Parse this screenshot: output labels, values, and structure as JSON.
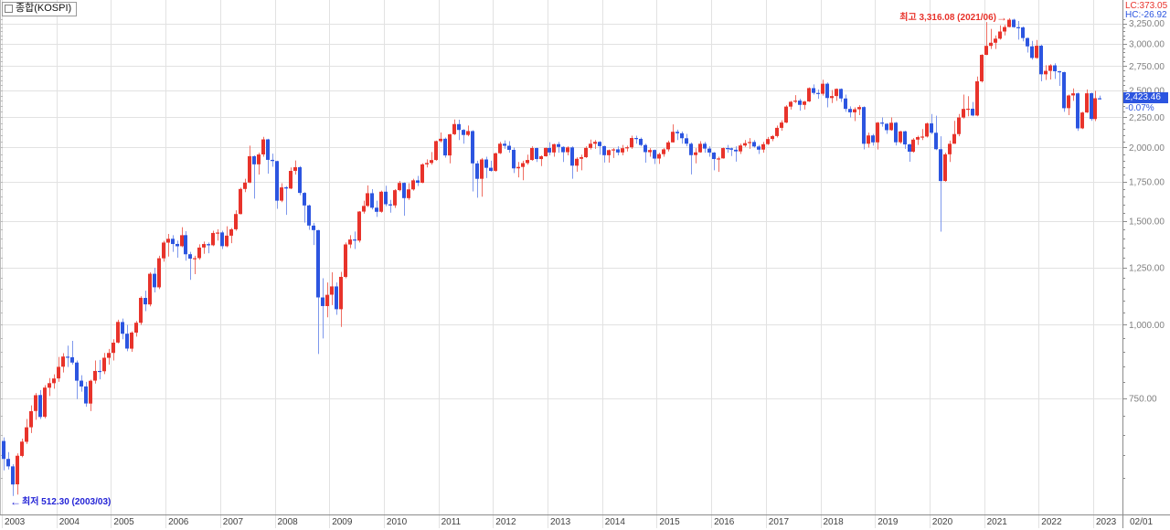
{
  "window": {
    "title": "종합(KOSPI)"
  },
  "header": {
    "lc": "LC:373.05",
    "hc": "HC:-26.92"
  },
  "price_marker": {
    "value": "2,423.46",
    "change": "-0.07%"
  },
  "annotations": {
    "high_label": "최고 3,316.08 (2021/06)",
    "high_arrow": "→",
    "low_label": "최저 512.30 (2003/03)",
    "low_arrow": "←"
  },
  "axes": {
    "x_labels": [
      "2003",
      "2004",
      "2005",
      "2006",
      "2007",
      "2008",
      "2009",
      "2010",
      "2011",
      "2012",
      "2013",
      "2014",
      "2015",
      "2016",
      "2017",
      "2018",
      "2019",
      "2020",
      "2021",
      "2022",
      "2023"
    ],
    "x_extra_label": "02/01",
    "y_tick_labels": [
      "3,250.00",
      "3,000.00",
      "2,750.00",
      "2,500.00",
      "2,250.00",
      "2,000.00",
      "1,750.00",
      "1,500.00",
      "1,250.00",
      "1,000.00",
      "750.00"
    ],
    "y_tick_values": [
      3250,
      3000,
      2750,
      2500,
      2250,
      2000,
      1750,
      1500,
      1250,
      1000,
      750
    ]
  },
  "colors": {
    "up": "#e8332b",
    "up_wick": "#ef6f63",
    "down": "#2c55e0",
    "down_wick": "#7e98ec",
    "grid": "#e2e2e2",
    "axis": "#8c8c8c",
    "y_label": "#7f7f7f",
    "x_label": "#404040",
    "annotation_red": "#e8332b",
    "annotation_blue": "#2424d6",
    "badge_bg": "#2c55e0",
    "badge_text": "#ffffff"
  },
  "chart_data": {
    "type": "candlestick",
    "title": "종합(KOSPI)",
    "timeframe": "monthly",
    "start_month": "2003-01",
    "end_month": "2023-02",
    "scale": "log",
    "ylim": [
      512.3,
      3316.08
    ],
    "y_ticks": [
      750,
      1000,
      1250,
      1500,
      1750,
      2000,
      2250,
      2500,
      2750,
      3000,
      3250
    ],
    "high": {
      "value": 3316.08,
      "month": "2021-06"
    },
    "low": {
      "value": 512.3,
      "month": "2003-03"
    },
    "last": {
      "close": 2423.46,
      "change_pct": -0.07
    },
    "ohlc": [
      [
        635,
        644,
        566,
        592
      ],
      [
        592,
        608,
        568,
        575
      ],
      [
        575,
        580,
        512.3,
        535.7
      ],
      [
        536,
        605,
        515,
        599.4
      ],
      [
        599,
        641,
        596,
        633.4
      ],
      [
        633,
        692,
        628,
        669.9
      ],
      [
        670,
        730,
        655,
        713.5
      ],
      [
        714,
        766,
        690,
        759.5
      ],
      [
        760,
        775,
        692,
        697.5
      ],
      [
        698,
        790,
        694,
        782.4
      ],
      [
        782,
        812,
        757,
        796.1
      ],
      [
        796,
        824,
        779,
        810.7
      ],
      [
        811,
        882,
        800,
        848.5
      ],
      [
        849,
        895,
        830,
        883.4
      ],
      [
        883,
        922,
        848,
        880.5
      ],
      [
        881,
        939.5,
        856,
        862.8
      ],
      [
        863,
        870,
        748,
        803.8
      ],
      [
        804,
        821,
        770,
        785.8
      ],
      [
        786,
        800,
        726,
        735.3
      ],
      [
        735,
        807,
        713.6,
        803.6
      ],
      [
        804,
        870,
        795,
        835
      ],
      [
        835,
        872,
        808,
        834.4
      ],
      [
        834,
        896,
        825,
        879.3
      ],
      [
        879,
        910,
        856,
        895.9
      ],
      [
        896,
        945,
        870,
        932.7
      ],
      [
        933,
        1020,
        930,
        1011.4
      ],
      [
        1011,
        1025,
        945,
        965.7
      ],
      [
        966,
        1000,
        902,
        911.3
      ],
      [
        911,
        975,
        900,
        970.2
      ],
      [
        970,
        1015,
        955,
        1008.2
      ],
      [
        1008,
        1118,
        1000,
        1111.3
      ],
      [
        1111,
        1143,
        1055,
        1083.3
      ],
      [
        1083,
        1228,
        1075,
        1221
      ],
      [
        1221,
        1250,
        1135,
        1158.1
      ],
      [
        1158,
        1310,
        1150,
        1297.4
      ],
      [
        1297,
        1389,
        1280,
        1379.4
      ],
      [
        1379,
        1427,
        1306,
        1399.8
      ],
      [
        1400,
        1420,
        1330,
        1371.6
      ],
      [
        1372,
        1390,
        1300,
        1359.6
      ],
      [
        1360,
        1464.7,
        1355,
        1419.7
      ],
      [
        1420,
        1442,
        1285,
        1317.7
      ],
      [
        1318,
        1330,
        1192.1,
        1295.2
      ],
      [
        1295,
        1310,
        1219,
        1297.8
      ],
      [
        1298,
        1370,
        1290,
        1352.7
      ],
      [
        1353,
        1385,
        1320,
        1371.4
      ],
      [
        1371,
        1380,
        1323,
        1364.6
      ],
      [
        1365,
        1445,
        1360,
        1432.2
      ],
      [
        1432,
        1453,
        1390,
        1434.5
      ],
      [
        1435,
        1445,
        1345,
        1360.2
      ],
      [
        1360,
        1470,
        1355,
        1417.3
      ],
      [
        1417,
        1460,
        1376,
        1452.6
      ],
      [
        1453,
        1565,
        1445,
        1542.2
      ],
      [
        1542,
        1710,
        1540,
        1700.9
      ],
      [
        1701,
        1770,
        1680,
        1743.6
      ],
      [
        1744,
        2015,
        1740,
        1933.3
      ],
      [
        1933,
        1940,
        1638.1,
        1873
      ],
      [
        1873,
        1960,
        1800,
        1946.5
      ],
      [
        1947,
        2085.5,
        1930,
        2064.9
      ],
      [
        2065,
        2070,
        1806,
        1906
      ],
      [
        1906,
        1953,
        1855,
        1897.1
      ],
      [
        1897,
        1900,
        1574,
        1624.7
      ],
      [
        1625,
        1740,
        1615,
        1711.6
      ],
      [
        1712,
        1720,
        1537,
        1704
      ],
      [
        1704,
        1850,
        1700,
        1825.5
      ],
      [
        1826,
        1901,
        1800,
        1852
      ],
      [
        1852,
        1860,
        1660,
        1674.9
      ],
      [
        1675,
        1680,
        1491,
        1594.7
      ],
      [
        1595,
        1600,
        1450,
        1474.2
      ],
      [
        1474,
        1490,
        1366,
        1448.1
      ],
      [
        1448,
        1450,
        892.2,
        1113.1
      ],
      [
        1113,
        1200,
        948,
        1076.1
      ],
      [
        1076,
        1180,
        1030,
        1124.5
      ],
      [
        1125,
        1228,
        1080,
        1162.1
      ],
      [
        1162,
        1180,
        1040,
        1063
      ],
      [
        1063,
        1230,
        992,
        1206.3
      ],
      [
        1206,
        1380,
        1200,
        1369.4
      ],
      [
        1369,
        1420,
        1350,
        1395.9
      ],
      [
        1396,
        1440,
        1345,
        1390.1
      ],
      [
        1390,
        1560,
        1380,
        1557.3
      ],
      [
        1557,
        1625,
        1545,
        1591.9
      ],
      [
        1592,
        1725,
        1585,
        1673.1
      ],
      [
        1673,
        1700,
        1570,
        1580.7
      ],
      [
        1581,
        1625,
        1525,
        1555.6
      ],
      [
        1556,
        1690,
        1550,
        1682.8
      ],
      [
        1683,
        1723,
        1590,
        1602.4
      ],
      [
        1602,
        1630,
        1550,
        1594.6
      ],
      [
        1595,
        1700,
        1580,
        1692.9
      ],
      [
        1693,
        1755,
        1685,
        1741.6
      ],
      [
        1742,
        1745,
        1532,
        1641.3
      ],
      [
        1641,
        1740,
        1630,
        1698.3
      ],
      [
        1698,
        1770,
        1690,
        1759.3
      ],
      [
        1759,
        1790,
        1720,
        1742.8
      ],
      [
        1743,
        1880,
        1740,
        1872.8
      ],
      [
        1873,
        1910,
        1850,
        1882.9
      ],
      [
        1883,
        1965,
        1870,
        1904.6
      ],
      [
        1905,
        2055,
        1900,
        2051
      ],
      [
        2051,
        2121,
        2040,
        2069.7
      ],
      [
        2070,
        2080,
        1923,
        1939.3
      ],
      [
        1939,
        2110,
        1880,
        2106.7
      ],
      [
        2107,
        2231.5,
        2100,
        2192.4
      ],
      [
        2192,
        2230,
        2060,
        2142.5
      ],
      [
        2143,
        2150,
        2030,
        2100.7
      ],
      [
        2101,
        2180,
        2090,
        2133.2
      ],
      [
        2133,
        2140,
        1684.7,
        1880.1
      ],
      [
        1880,
        1900,
        1644.1,
        1769.7
      ],
      [
        1770,
        1920,
        1650,
        1909
      ],
      [
        1909,
        1930,
        1775,
        1847.5
      ],
      [
        1848,
        1900,
        1820,
        1825.7
      ],
      [
        1826,
        1960,
        1820,
        1955.8
      ],
      [
        1956,
        2045,
        1950,
        2030.3
      ],
      [
        2030,
        2057,
        1990,
        2014
      ],
      [
        2014,
        2050,
        1960,
        1981.9
      ],
      [
        1982,
        2000,
        1810,
        1843.5
      ],
      [
        1844,
        1890,
        1780,
        1854
      ],
      [
        1854,
        1900,
        1760,
        1881.9
      ],
      [
        1882,
        1945,
        1870,
        1905.1
      ],
      [
        1905,
        2010,
        1900,
        1996.2
      ],
      [
        1996,
        2000,
        1890,
        1912.1
      ],
      [
        1912,
        1940,
        1860,
        1932.9
      ],
      [
        1933,
        2000,
        1930,
        1997.1
      ],
      [
        1997,
        2042,
        1940,
        1961.9
      ],
      [
        1962,
        2030,
        1930,
        2026.5
      ],
      [
        2027,
        2045,
        1960,
        2004.9
      ],
      [
        2005,
        2010,
        1890,
        1963.9
      ],
      [
        1964,
        2010,
        1940,
        2001.1
      ],
      [
        2001,
        2010,
        1770.5,
        1863.3
      ],
      [
        1863,
        1925,
        1820,
        1914
      ],
      [
        1914,
        1945,
        1830,
        1926.4
      ],
      [
        1926,
        2010,
        1920,
        1997
      ],
      [
        1997,
        2063,
        1985,
        2030.1
      ],
      [
        2030,
        2060,
        1990,
        2044.9
      ],
      [
        2045,
        2050,
        1945,
        2011.3
      ],
      [
        2011,
        2015,
        1886,
        1941.2
      ],
      [
        1941,
        1985,
        1885,
        1980
      ],
      [
        1980,
        1995,
        1920,
        1985.6
      ],
      [
        1986,
        2010,
        1940,
        1961.8
      ],
      [
        1962,
        2020,
        1940,
        1995
      ],
      [
        1995,
        2015,
        1970,
        2002.2
      ],
      [
        2002,
        2095,
        1990,
        2076.1
      ],
      [
        2076,
        2095,
        2030,
        2068.5
      ],
      [
        2069,
        2080,
        2010,
        2020.1
      ],
      [
        2020,
        2030,
        1885,
        1964.4
      ],
      [
        1964,
        1995,
        1930,
        1980.8
      ],
      [
        1981,
        1985,
        1875,
        1915.6
      ],
      [
        1916,
        1960,
        1876,
        1949.3
      ],
      [
        1949,
        1995,
        1930,
        1985.8
      ],
      [
        1986,
        2055,
        1970,
        2041
      ],
      [
        2041,
        2189.5,
        2040,
        2127.2
      ],
      [
        2127,
        2145,
        2060,
        2114.8
      ],
      [
        2115,
        2130,
        2030,
        2074.2
      ],
      [
        2074,
        2110,
        2010,
        2030.2
      ],
      [
        2030,
        2040,
        1800.8,
        1941.5
      ],
      [
        1942,
        1995,
        1880,
        1962.8
      ],
      [
        1963,
        2050,
        1960,
        2029.5
      ],
      [
        2030,
        2045,
        1960,
        1992
      ],
      [
        1992,
        2010,
        1930,
        1961.3
      ],
      [
        1961,
        1965,
        1830,
        1912.1
      ],
      [
        1912,
        1930,
        1817.9,
        1916.7
      ],
      [
        1917,
        2000,
        1915,
        1995.9
      ],
      [
        1996,
        2020,
        1960,
        1994.2
      ],
      [
        1994,
        2000,
        1935,
        1983.4
      ],
      [
        1983,
        2010,
        1892.8,
        1970.4
      ],
      [
        1970,
        2030,
        1950,
        2016.2
      ],
      [
        2016,
        2060,
        2005,
        2034.7
      ],
      [
        2035,
        2075,
        1990,
        2043.6
      ],
      [
        2044,
        2060,
        2000,
        2008.2
      ],
      [
        2008,
        2020,
        1950,
        1983.5
      ],
      [
        1984,
        2045,
        1960,
        2026.5
      ],
      [
        2027,
        2085,
        2020,
        2067.6
      ],
      [
        2068,
        2100,
        2050,
        2091.6
      ],
      [
        2092,
        2180,
        2080,
        2160.2
      ],
      [
        2160,
        2225,
        2135,
        2205.4
      ],
      [
        2205,
        2360,
        2200,
        2347.4
      ],
      [
        2347,
        2400,
        2320,
        2391.8
      ],
      [
        2392,
        2455,
        2380,
        2402.7
      ],
      [
        2403,
        2420,
        2310,
        2363.2
      ],
      [
        2363,
        2400,
        2320,
        2394.5
      ],
      [
        2395,
        2530,
        2390,
        2523.4
      ],
      [
        2523,
        2560,
        2460,
        2476.4
      ],
      [
        2476,
        2510,
        2420,
        2467.5
      ],
      [
        2468,
        2607.1,
        2450,
        2566.5
      ],
      [
        2567,
        2580,
        2340,
        2427.4
      ],
      [
        2427,
        2505,
        2380,
        2445.9
      ],
      [
        2446,
        2520,
        2400,
        2515.4
      ],
      [
        2515,
        2520,
        2390,
        2423
      ],
      [
        2423,
        2460,
        2300,
        2326.1
      ],
      [
        2326,
        2350,
        2250,
        2295.3
      ],
      [
        2295,
        2340,
        2218,
        2322.9
      ],
      [
        2323,
        2360,
        2270,
        2343.1
      ],
      [
        2343,
        2350,
        1985.9,
        2029.7
      ],
      [
        2030,
        2120,
        2000,
        2096.9
      ],
      [
        2097,
        2110,
        2015,
        2041
      ],
      [
        2041,
        2210,
        1985,
        2204.9
      ],
      [
        2205,
        2250,
        2170,
        2195.4
      ],
      [
        2195,
        2200,
        2110,
        2140.7
      ],
      [
        2141,
        2250,
        2135,
        2203.6
      ],
      [
        2204,
        2210,
        2016,
        2041.7
      ],
      [
        2042,
        2135,
        2030,
        2130.6
      ],
      [
        2131,
        2135,
        1990,
        2024.6
      ],
      [
        2025,
        2030,
        1891.8,
        1967.8
      ],
      [
        1968,
        2075,
        1960,
        2063.1
      ],
      [
        2063,
        2095,
        2020,
        2083.5
      ],
      [
        2084,
        2150,
        2060,
        2088
      ],
      [
        2088,
        2205,
        2080,
        2197.7
      ],
      [
        2198,
        2280,
        2108,
        2119
      ],
      [
        2119,
        2265,
        1980,
        1987
      ],
      [
        1987,
        2090,
        1439.4,
        1754.6
      ],
      [
        1755,
        1960,
        1750,
        1947.6
      ],
      [
        1948,
        2055,
        1890,
        2029.6
      ],
      [
        2030,
        2220,
        2030,
        2108.3
      ],
      [
        2108,
        2280,
        2090,
        2249.4
      ],
      [
        2249,
        2460,
        2240,
        2326.2
      ],
      [
        2326,
        2445,
        2260,
        2327.9
      ],
      [
        2328,
        2390,
        2260,
        2267.2
      ],
      [
        2267,
        2640,
        2260,
        2591.3
      ],
      [
        2591,
        2880,
        2580,
        2873.5
      ],
      [
        2874,
        3266.2,
        2870,
        2976.2
      ],
      [
        2976,
        3180,
        2940,
        3013
      ],
      [
        3013,
        3100,
        2940,
        3061.4
      ],
      [
        3061,
        3225,
        3050,
        3147.9
      ],
      [
        3148,
        3230,
        3100,
        3203.9
      ],
      [
        3204,
        3316.1,
        3200,
        3296.7
      ],
      [
        3297,
        3310,
        3195,
        3202.3
      ],
      [
        3202,
        3280,
        3050,
        3199.3
      ],
      [
        3199,
        3210,
        3030,
        3068.8
      ],
      [
        3069,
        3075,
        2900,
        2970.7
      ],
      [
        2971,
        3035,
        2820,
        2839
      ],
      [
        2839,
        3045,
        2830,
        2977.7
      ],
      [
        2978,
        2990,
        2591,
        2663.3
      ],
      [
        2663,
        2760,
        2605,
        2699.2
      ],
      [
        2699,
        2770,
        2610,
        2757.7
      ],
      [
        2758,
        2780,
        2615,
        2695.1
      ],
      [
        2695,
        2700,
        2545,
        2686
      ],
      [
        2686,
        2690,
        2300,
        2332.6
      ],
      [
        2333,
        2460,
        2270,
        2451.5
      ],
      [
        2452,
        2520,
        2400,
        2472.1
      ],
      [
        2472,
        2480,
        2134.8,
        2155.5
      ],
      [
        2156,
        2300,
        2150,
        2293.6
      ],
      [
        2294,
        2510,
        2290,
        2472.5
      ],
      [
        2473,
        2480,
        2220,
        2236.4
      ],
      [
        2236,
        2497,
        2218,
        2425.1
      ],
      [
        2425,
        2450,
        2415,
        2423.46
      ]
    ]
  }
}
